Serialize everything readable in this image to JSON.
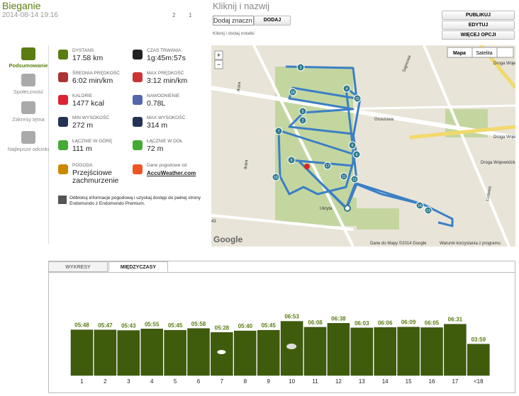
{
  "header": {
    "title": "Bieganie",
    "datetime": "2014-08-14 19:16",
    "comments": "2",
    "likes": "1"
  },
  "workout": {
    "name_prompt": "Kliknij i nazwij",
    "marker_input": "Dodaj znaczn",
    "add_button": "DODAJ",
    "notes_prompt": "Kliknij i dodaj notatki"
  },
  "actions": [
    "PUBLIKUJ",
    "EDYTUJ",
    "WIĘCEJ OPCJI"
  ],
  "sidebar": [
    "Podsumowanie",
    "Społeczność",
    "Zakresy tętna",
    "Najlepsze odcinki"
  ],
  "stats": [
    {
      "label": "DYSTANS",
      "value": "17.58 km"
    },
    {
      "label": "CZAS TRWANIA",
      "value": "1g:45m:57s"
    },
    {
      "label": "ŚREDNIA PRĘDKOŚĆ",
      "value": "6:02 min/km"
    },
    {
      "label": "MAX PRĘDKOŚĆ",
      "value": "3:12 min/km"
    },
    {
      "label": "KALORIE",
      "value": "1477 kcal"
    },
    {
      "label": "NAWODNIENIE",
      "value": "0.78L"
    },
    {
      "label": "MIN WYSOKOŚĆ",
      "value": "272 m"
    },
    {
      "label": "MAX WYSOKOŚĆ",
      "value": "314 m"
    },
    {
      "label": "ŁĄCZNIE W GÓRĘ",
      "value": "111 m"
    },
    {
      "label": "ŁĄCZNIE W DÓŁ",
      "value": "72 m"
    },
    {
      "label": "POGODA",
      "value": "Przejściowe zachmurzenie"
    },
    {
      "label": "Dane pogodowe od",
      "value": "AccuWeather.com"
    }
  ],
  "promo": "Odblokuj informacje pogodową i uzyskaj dostęp do pełnej strony Endomondo z Endomondo Premium.",
  "map": {
    "type_buttons": [
      "Mapa",
      "Satelita"
    ],
    "zoom": [
      "+",
      "−"
    ],
    "roads": [
      "Droga Wojewódzka 491",
      "Droga Wojewódzka 491",
      "Droga Wojewódzka",
      "Gruszowa",
      "Sajmowa",
      "Ludowa",
      "Ikara",
      "Ikara",
      "Ukryta",
      "43"
    ],
    "markers": [
      "3",
      "16",
      "4",
      "15",
      "5",
      "2",
      "7",
      "6",
      "8",
      "9",
      "17",
      "10",
      "11",
      "12",
      "14",
      "13"
    ],
    "logo": "Google",
    "attribution": "Dane do Mapy ©2014 Google",
    "terms": "Warunki korzystania z programu"
  },
  "tabs": [
    "WYKRESY",
    "MIĘDZYCZASY"
  ],
  "chart_data": {
    "type": "bar",
    "categories": [
      "1",
      "2",
      "3",
      "4",
      "5",
      "6",
      "7",
      "8",
      "9",
      "10",
      "11",
      "12",
      "13",
      "14",
      "15",
      "16",
      "17",
      "<18"
    ],
    "values": [
      348,
      347,
      343,
      355,
      345,
      358,
      328,
      340,
      345,
      413,
      368,
      398,
      363,
      366,
      369,
      365,
      391,
      239
    ],
    "value_labels": [
      "05:48",
      "05:47",
      "05:43",
      "05:55",
      "05:45",
      "05:58",
      "05:28",
      "05:40",
      "05:45",
      "06:53",
      "06:08",
      "06:38",
      "06:03",
      "06:06",
      "06:09",
      "06:05",
      "06:31",
      "03:59"
    ],
    "color": "#3f5c0c"
  }
}
